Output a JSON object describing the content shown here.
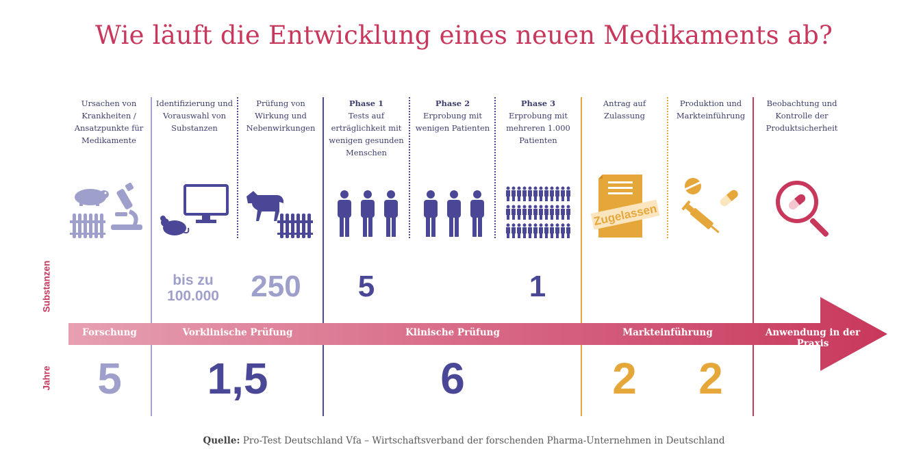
{
  "title": "Wie läuft die Entwicklung eines neuen Medikaments ab?",
  "colors": {
    "accent": "#c8385c",
    "light_purple": "#9f9fcc",
    "dark_purple": "#4a4896",
    "orange": "#e6a73a"
  },
  "stages": [
    {
      "heading": "",
      "text": "Ursachen von Krankheiten / Ansatzpunkte für Medikamente"
    },
    {
      "heading": "",
      "text": "Identifizierung und Vorauswahl von Substanzen"
    },
    {
      "heading": "",
      "text": "Prüfung von Wirkung und Nebenwirkungen"
    },
    {
      "heading": "Phase 1",
      "text": "Tests auf erträglichkeit mit wenigen gesunden Menschen"
    },
    {
      "heading": "Phase 2",
      "text": "Erprobung mit wenigen Patienten"
    },
    {
      "heading": "Phase 3",
      "text": "Erprobung mit mehreren 1.000 Patienten"
    },
    {
      "heading": "",
      "text": "Antrag auf Zulassung"
    },
    {
      "heading": "",
      "text": "Produktion und Markteinführung"
    },
    {
      "heading": "",
      "text": "Beobachtung und Kontrolle der Produktsicherheit"
    }
  ],
  "icons": [
    "hamster-icon",
    "test-tubes-icon",
    "microscope-icon",
    "monitor-icon",
    "mouse-icon",
    "dog-icon",
    "test-tubes-icon",
    "people-icon",
    "people-icon",
    "crowd-icon",
    "approval-document-icon",
    "pills-syringe-icon",
    "magnifier-pill-icon"
  ],
  "stamp_text": "Zugelassen",
  "row_labels": {
    "substances": "Substanzen",
    "years": "Jahre"
  },
  "substances": [
    {
      "value": "bis zu 100.000"
    },
    {
      "value": "250"
    },
    {
      "value": "5"
    },
    {
      "value": "1"
    }
  ],
  "phases": [
    "Forschung",
    "Vorklinische Prüfung",
    "Klinische Prüfung",
    "Markteinführung",
    "Anwendung in der Praxis"
  ],
  "years": [
    "5",
    "1,5",
    "6",
    "2",
    "2"
  ],
  "source": {
    "label": "Quelle:",
    "text": " Pro-Test Deutschland Vfa – Wirtschaftsverband der forschenden Pharma-Unternehmen in Deutschland"
  }
}
